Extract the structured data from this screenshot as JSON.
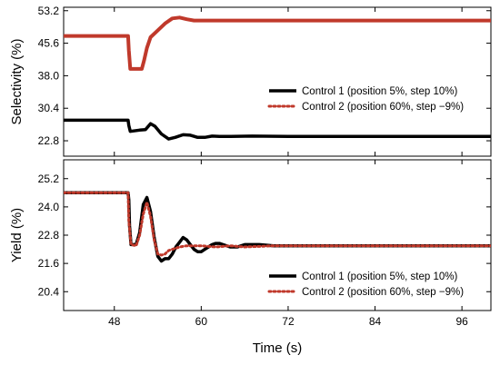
{
  "chart_data": {
    "type": "line",
    "xlabel": "Time (s)",
    "xlim": [
      41,
      100
    ],
    "x_ticks": [
      48,
      60,
      72,
      84,
      96
    ],
    "subplots": [
      {
        "name": "selectivity",
        "ylabel": "Selectivity (%)",
        "ylim": [
          19.2,
          54
        ],
        "y_ticks": [
          "22.8",
          "30.4",
          "38.0",
          "45.6",
          "53.2"
        ],
        "y_tick_values": [
          22.8,
          30.4,
          38.0,
          45.6,
          53.2
        ],
        "legend_position": "center-right",
        "series": [
          {
            "name": "Control 1 (position 5%, step 10%)",
            "color": "#000000",
            "style": "solid",
            "x": [
              41,
              49.9,
              50.0,
              50.2,
              51.5,
              52.3,
              53.0,
              53.6,
              54.5,
              55.5,
              56.4,
              57.5,
              58.5,
              59.5,
              60.5,
              61.5,
              62.5,
              64,
              67,
              72,
              80,
              90,
              100
            ],
            "y": [
              27.6,
              27.6,
              26.4,
              25.0,
              25.3,
              25.4,
              26.8,
              26.2,
              24.4,
              23.2,
              23.6,
              24.2,
              24.1,
              23.6,
              23.6,
              23.9,
              23.8,
              23.8,
              23.9,
              23.8,
              23.8,
              23.8,
              23.8
            ]
          },
          {
            "name": "Control 2 (position 60%, step −9%)",
            "color": "#c0392b",
            "style": "dotted",
            "x": [
              41,
              49.9,
              50.0,
              50.2,
              51.8,
              52.1,
              52.5,
              53.0,
              54.0,
              55.0,
              56.0,
              57.0,
              58.0,
              59.0,
              60.0,
              62.0,
              100
            ],
            "y": [
              47.3,
              47.3,
              44.0,
              39.6,
              39.6,
              41.5,
              44.5,
              47.0,
              48.6,
              50.2,
              51.4,
              51.6,
              51.2,
              50.9,
              50.9,
              50.9,
              50.9
            ]
          }
        ]
      },
      {
        "name": "yield",
        "ylabel": "Yield (%)",
        "ylim": [
          19.6,
          26.0
        ],
        "y_ticks": [
          "20.4",
          "21.6",
          "22.8",
          "24.0",
          "25.2"
        ],
        "y_tick_values": [
          20.4,
          21.6,
          22.8,
          24.0,
          25.2
        ],
        "legend_position": "bottom-right",
        "series": [
          {
            "name": "Control 1 (position 5%, step 10%)",
            "color": "#000000",
            "style": "solid",
            "x": [
              41,
              49.9,
              50.0,
              50.1,
              50.3,
              51.0,
              51.5,
              52.0,
              52.5,
              53.0,
              53.5,
              54.0,
              54.5,
              55.0,
              55.5,
              56.0,
              56.5,
              57.0,
              57.5,
              58.0,
              58.5,
              59.0,
              59.5,
              60.0,
              60.5,
              61.0,
              61.5,
              62.0,
              62.5,
              63.0,
              64.0,
              65.0,
              66.0,
              67.0,
              68.0,
              70.0,
              75.0,
              80.0,
              85.0,
              90.0,
              95.0,
              100.0
            ],
            "y": [
              24.6,
              24.6,
              24.3,
              23.2,
              22.4,
              22.4,
              22.9,
              24.1,
              24.4,
              23.8,
              22.7,
              21.9,
              21.7,
              21.8,
              21.8,
              22.0,
              22.3,
              22.5,
              22.7,
              22.6,
              22.4,
              22.2,
              22.1,
              22.1,
              22.2,
              22.3,
              22.4,
              22.45,
              22.45,
              22.4,
              22.3,
              22.3,
              22.4,
              22.4,
              22.4,
              22.35,
              22.35,
              22.35,
              22.35,
              22.35,
              22.35,
              22.35
            ]
          },
          {
            "name": "Control 2 (position 60%, step −9%)",
            "color": "#c0392b",
            "style": "dotted",
            "x": [
              41,
              49.9,
              50.0,
              50.3,
              51.0,
              51.5,
              52.0,
              52.5,
              53.0,
              53.5,
              54.0,
              54.5,
              55.0,
              55.5,
              56.0,
              57.0,
              58.0,
              59.0,
              60.0,
              62.0,
              64.0,
              66.0,
              70.0,
              80.0,
              100.0
            ],
            "y": [
              24.6,
              24.6,
              23.4,
              22.4,
              22.35,
              22.8,
              23.7,
              24.2,
              23.6,
              22.6,
              22.0,
              21.95,
              22.0,
              22.15,
              22.2,
              22.3,
              22.35,
              22.35,
              22.35,
              22.3,
              22.35,
              22.3,
              22.35,
              22.35,
              22.35
            ]
          }
        ]
      }
    ]
  }
}
